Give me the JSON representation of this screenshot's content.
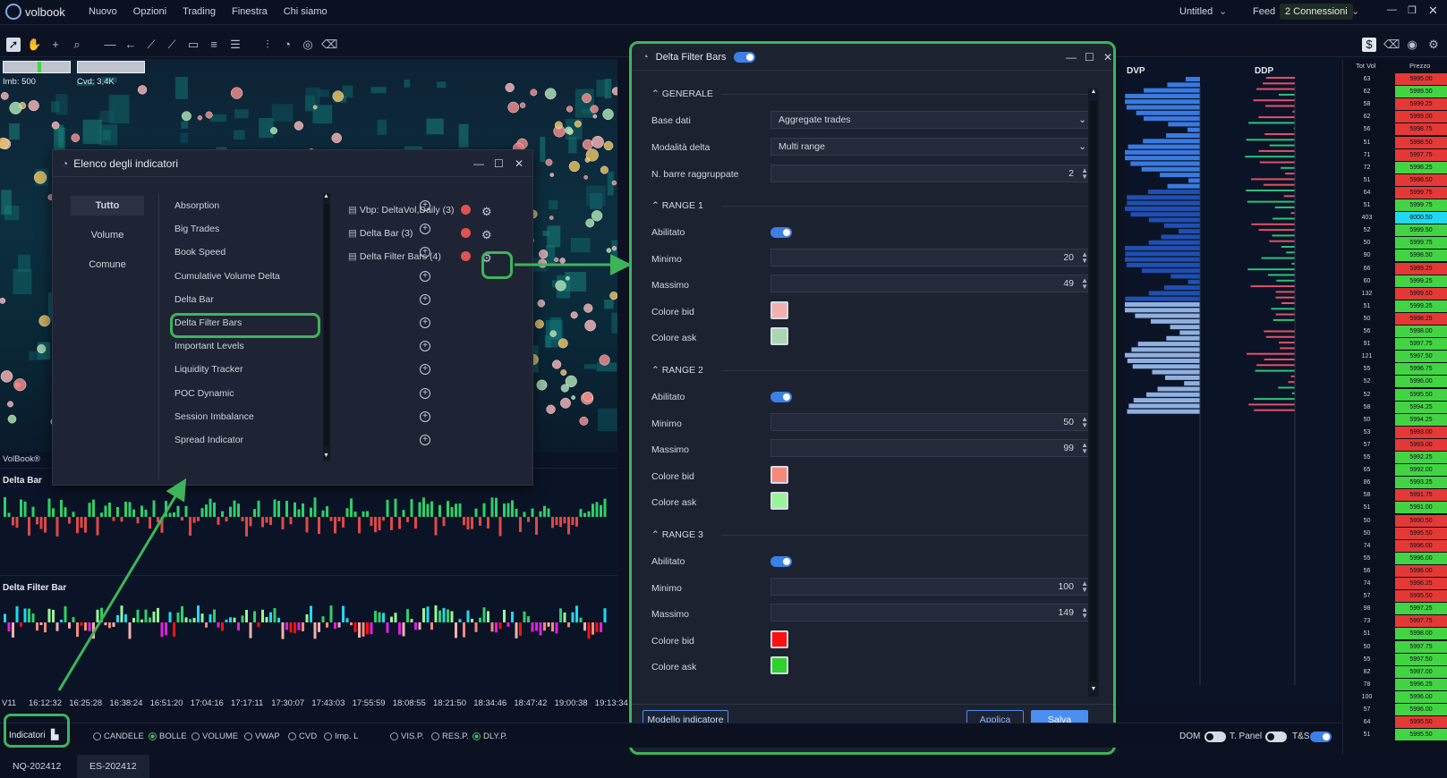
{
  "app": {
    "logo": "volbook",
    "menu": [
      "Nuovo",
      "Opzioni",
      "Trading",
      "Finestra",
      "Chi siamo"
    ],
    "workspace": "Untitled",
    "feed_label": "Feed",
    "connections": "2 Connessioni"
  },
  "chart": {
    "imb": "Imb: 500",
    "cvd": "Cvd: 3,4K",
    "watermark": "VolBook®",
    "sub1": "Delta Bar",
    "sub2": "Delta Filter Bar",
    "times": [
      "V11",
      "16:12:32",
      "16:25:28",
      "16:38:24",
      "16:51:20",
      "17:04:16",
      "17:17:11",
      "17:30:07",
      "17:43:03",
      "17:55:59",
      "18:08:55",
      "18:21:50",
      "18:34:46",
      "18:47:42",
      "19:00:38",
      "19:13:34"
    ]
  },
  "indicator_list": {
    "title": "Elenco degli indicatori",
    "categories": [
      "Tutto",
      "Volume",
      "Comune"
    ],
    "available": [
      "Absorption",
      "Big Trades",
      "Book Speed",
      "Cumulative Volume Delta",
      "Delta Bar",
      "Delta Filter Bars",
      "Important Levels",
      "Liquidity Tracker",
      "POC Dynamic",
      "Session Imbalance",
      "Spread Indicator"
    ],
    "active": [
      "Vbp: DeltaVol,Daily (3)",
      "Delta Bar (3)",
      "Delta Filter Bars (4)"
    ]
  },
  "dialog": {
    "title": "Delta Filter Bars",
    "general": {
      "section": "GENERALE",
      "base_label": "Base dati",
      "base_value": "Aggregate trades",
      "mode_label": "Modalità delta",
      "mode_value": "Multi range",
      "bars_label": "N. barre raggruppate",
      "bars_value": "2"
    },
    "ranges": [
      {
        "section": "RANGE 1",
        "enabled_label": "Abilitato",
        "min_label": "Minimo",
        "min": "20",
        "max_label": "Massimo",
        "max": "49",
        "bid_label": "Colore bid",
        "bid_color": "#f2b0b0",
        "ask_label": "Colore ask",
        "ask_color": "#a8d8b0"
      },
      {
        "section": "RANGE 2",
        "enabled_label": "Abilitato",
        "min_label": "Minimo",
        "min": "50",
        "max_label": "Massimo",
        "max": "99",
        "bid_label": "Colore bid",
        "bid_color": "#f58a7c",
        "ask_label": "Colore ask",
        "ask_color": "#9af59a"
      },
      {
        "section": "RANGE 3",
        "enabled_label": "Abilitato",
        "min_label": "Minimo",
        "min": "100",
        "max_label": "Massimo",
        "max": "149",
        "bid_label": "Colore bid",
        "bid_color": "#ff1010",
        "ask_label": "Colore ask",
        "ask_color": "#2ed12e"
      }
    ],
    "template_button": "Modello indicatore",
    "apply_button": "Applica",
    "save_button": "Salva"
  },
  "right_panel": {
    "dvp": "DVP",
    "ddp": "DDP"
  },
  "ladder": {
    "header_vol": "Tot Vol",
    "header_price": "Prezzo",
    "rows": [
      {
        "v": "63",
        "p": "5995.00",
        "c": "#e53935"
      },
      {
        "v": "62",
        "p": "5999.50",
        "c": "#43d443"
      },
      {
        "v": "58",
        "p": "5999.25",
        "c": "#e53935"
      },
      {
        "v": "62",
        "p": "5999.00",
        "c": "#e53935"
      },
      {
        "v": "56",
        "p": "5998.75",
        "c": "#e53935"
      },
      {
        "v": "51",
        "p": "5998.50",
        "c": "#e53935"
      },
      {
        "v": "71",
        "p": "5997.75",
        "c": "#e53935"
      },
      {
        "v": "72",
        "p": "5998.25",
        "c": "#43d443"
      },
      {
        "v": "51",
        "p": "5998.50",
        "c": "#e53935"
      },
      {
        "v": "64",
        "p": "5999.75",
        "c": "#e53935"
      },
      {
        "v": "51",
        "p": "5999.75",
        "c": "#43d443"
      },
      {
        "v": "403",
        "p": "6000.50",
        "c": "#21d8f0"
      },
      {
        "v": "52",
        "p": "5999.50",
        "c": "#43d443"
      },
      {
        "v": "50",
        "p": "5999.75",
        "c": "#43d443"
      },
      {
        "v": "90",
        "p": "5998.50",
        "c": "#43d443"
      },
      {
        "v": "66",
        "p": "5999.25",
        "c": "#e53935"
      },
      {
        "v": "60",
        "p": "5999.25",
        "c": "#43d443"
      },
      {
        "v": "132",
        "p": "5999.50",
        "c": "#e53935"
      },
      {
        "v": "51",
        "p": "5999.25",
        "c": "#43d443"
      },
      {
        "v": "50",
        "p": "5998.25",
        "c": "#e53935"
      },
      {
        "v": "56",
        "p": "5998.00",
        "c": "#43d443"
      },
      {
        "v": "91",
        "p": "5997.75",
        "c": "#43d443"
      },
      {
        "v": "121",
        "p": "5997.50",
        "c": "#43d443"
      },
      {
        "v": "55",
        "p": "5996.75",
        "c": "#43d443"
      },
      {
        "v": "52",
        "p": "5996.00",
        "c": "#43d443"
      },
      {
        "v": "52",
        "p": "5995.50",
        "c": "#43d443"
      },
      {
        "v": "58",
        "p": "5994.25",
        "c": "#43d443"
      },
      {
        "v": "50",
        "p": "5994.25",
        "c": "#43d443"
      },
      {
        "v": "53",
        "p": "5993.00",
        "c": "#e53935"
      },
      {
        "v": "57",
        "p": "5993.00",
        "c": "#e53935"
      },
      {
        "v": "55",
        "p": "5992.25",
        "c": "#43d443"
      },
      {
        "v": "65",
        "p": "5992.00",
        "c": "#43d443"
      },
      {
        "v": "86",
        "p": "5993.25",
        "c": "#43d443"
      },
      {
        "v": "58",
        "p": "5991.75",
        "c": "#e53935"
      },
      {
        "v": "51",
        "p": "5991.00",
        "c": "#43d443"
      },
      {
        "v": "50",
        "p": "5990.50",
        "c": "#e53935"
      },
      {
        "v": "50",
        "p": "5995.50",
        "c": "#e53935"
      },
      {
        "v": "74",
        "p": "5996.00",
        "c": "#e53935"
      },
      {
        "v": "55",
        "p": "5996.00",
        "c": "#43d443"
      },
      {
        "v": "56",
        "p": "5996.00",
        "c": "#e53935"
      },
      {
        "v": "74",
        "p": "5996.25",
        "c": "#e53935"
      },
      {
        "v": "57",
        "p": "5995.50",
        "c": "#e53935"
      },
      {
        "v": "98",
        "p": "5997.25",
        "c": "#43d443"
      },
      {
        "v": "73",
        "p": "5997.75",
        "c": "#e53935"
      },
      {
        "v": "51",
        "p": "5998.00",
        "c": "#43d443"
      },
      {
        "v": "50",
        "p": "5997.75",
        "c": "#43d443"
      },
      {
        "v": "55",
        "p": "5997.50",
        "c": "#43d443"
      },
      {
        "v": "82",
        "p": "5997.00",
        "c": "#43d443"
      },
      {
        "v": "78",
        "p": "5996.25",
        "c": "#43d443"
      },
      {
        "v": "100",
        "p": "5996.00",
        "c": "#43d443"
      },
      {
        "v": "57",
        "p": "5996.00",
        "c": "#43d443"
      },
      {
        "v": "64",
        "p": "5995.50",
        "c": "#e53935"
      },
      {
        "v": "51",
        "p": "5995.50",
        "c": "#43d443"
      }
    ]
  },
  "bottom": {
    "indicators_button": "Indicatori",
    "options": [
      {
        "label": "CANDELE",
        "selected": false
      },
      {
        "label": "BOLLE",
        "selected": true
      },
      {
        "label": "VOLUME",
        "selected": false
      },
      {
        "label": "VWAP",
        "selected": false
      },
      {
        "label": "CVD",
        "selected": false
      },
      {
        "label": "Imp. L",
        "selected": false
      },
      {
        "label": "VIS.P.",
        "selected": false
      },
      {
        "label": "RES.P.",
        "selected": false
      },
      {
        "label": "DLY.P.",
        "selected": true
      }
    ],
    "dom": "DOM",
    "tpanel": "T. Panel",
    "ts": "T&S"
  },
  "tabs": [
    "NQ-202412",
    "ES-202412"
  ]
}
